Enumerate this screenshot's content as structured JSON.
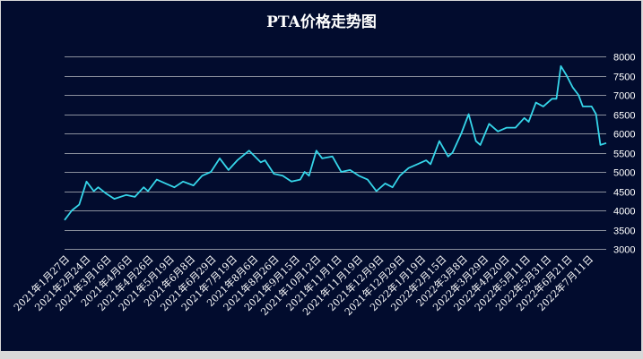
{
  "chart_data": {
    "type": "line",
    "title": "PTA价格走势图",
    "xlabel": "",
    "ylabel": "",
    "ylim": [
      3000,
      8000
    ],
    "yticks": [
      3000,
      3500,
      4000,
      4500,
      5000,
      5500,
      6000,
      6500,
      7000,
      7500,
      8000
    ],
    "y_axis_position": "right",
    "grid": true,
    "line_color": "#36d6ea",
    "x_range_trading_days": [
      0,
      370
    ],
    "xtick_labels": [
      "2021年1月27日",
      "2021年2月24日",
      "2021年3月16日",
      "2021年4月6日",
      "2021年4月26日",
      "2021年5月19日",
      "2021年6月8日",
      "2021年6月29日",
      "2021年7月19日",
      "2021年8月6日",
      "2021年8月26日",
      "2021年9月15日",
      "2021年10月12日",
      "2021年11月1日",
      "2021年11月19日",
      "2021年12月9日",
      "2021年12月29日",
      "2022年1月19日",
      "2022年2月15日",
      "2022年3月8日",
      "2022年3月29日",
      "2022年4月20日",
      "2022年5月11日",
      "2022年5月31日",
      "2022年6月21日",
      "2022年7月11日"
    ],
    "series": [
      {
        "name": "PTA",
        "x": [
          0,
          5,
          10,
          15,
          20,
          23,
          28,
          34,
          42,
          48,
          54,
          57,
          63,
          69,
          75,
          81,
          88,
          94,
          100,
          106,
          112,
          118,
          126,
          134,
          137,
          143,
          149,
          155,
          161,
          164,
          167,
          172,
          176,
          183,
          189,
          195,
          201,
          207,
          213,
          219,
          224,
          229,
          235,
          241,
          247,
          250,
          256,
          262,
          265,
          271,
          276,
          281,
          284,
          290,
          296,
          302,
          308,
          314,
          317,
          322,
          327,
          333,
          336,
          339,
          343,
          347,
          351,
          354,
          360,
          363,
          366,
          370
        ],
        "values": [
          3750,
          4000,
          4150,
          4750,
          4500,
          4600,
          4450,
          4300,
          4400,
          4350,
          4600,
          4500,
          4800,
          4700,
          4600,
          4750,
          4650,
          4900,
          5000,
          5350,
          5050,
          5300,
          5550,
          5250,
          5300,
          4950,
          4900,
          4750,
          4800,
          5000,
          4900,
          5550,
          5350,
          5400,
          5000,
          5050,
          4900,
          4800,
          4500,
          4700,
          4600,
          4900,
          5100,
          5200,
          5300,
          5200,
          5800,
          5400,
          5500,
          6000,
          6500,
          5800,
          5700,
          6250,
          6050,
          6150,
          6150,
          6400,
          6300,
          6800,
          6700,
          6900,
          6900,
          7750,
          7500,
          7200,
          7000,
          6700,
          6700,
          6500,
          5700,
          5750
        ]
      }
    ]
  }
}
